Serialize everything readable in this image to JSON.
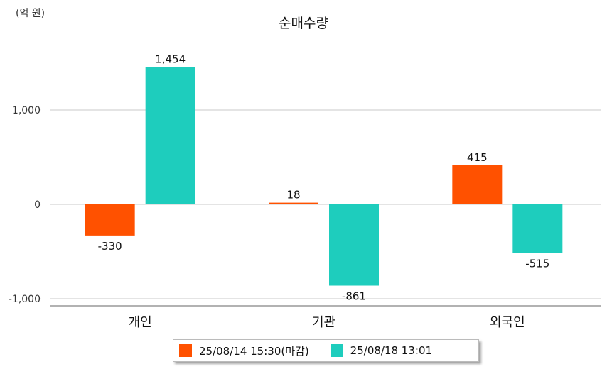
{
  "chart_data": {
    "type": "bar",
    "title": "순매수량",
    "unit_label": "(억 원)",
    "categories": [
      "개인",
      "기관",
      "외국인"
    ],
    "series": [
      {
        "name": "25/08/14 15:30(마감)",
        "color": "#ff5100",
        "values": [
          -330,
          18,
          415
        ]
      },
      {
        "name": "25/08/18 13:01",
        "color": "#1ecdbd",
        "values": [
          1454,
          -861,
          -515
        ]
      }
    ],
    "data_labels": [
      [
        "-330",
        "18",
        "415"
      ],
      [
        "1,454",
        "-861",
        "-515"
      ]
    ],
    "yticks": [
      -1000,
      0,
      1000
    ],
    "ytick_labels": [
      "-1,000",
      "0",
      "1,000"
    ],
    "ylim": [
      -1080,
      1500
    ],
    "grid": true,
    "legend_position": "bottom"
  }
}
